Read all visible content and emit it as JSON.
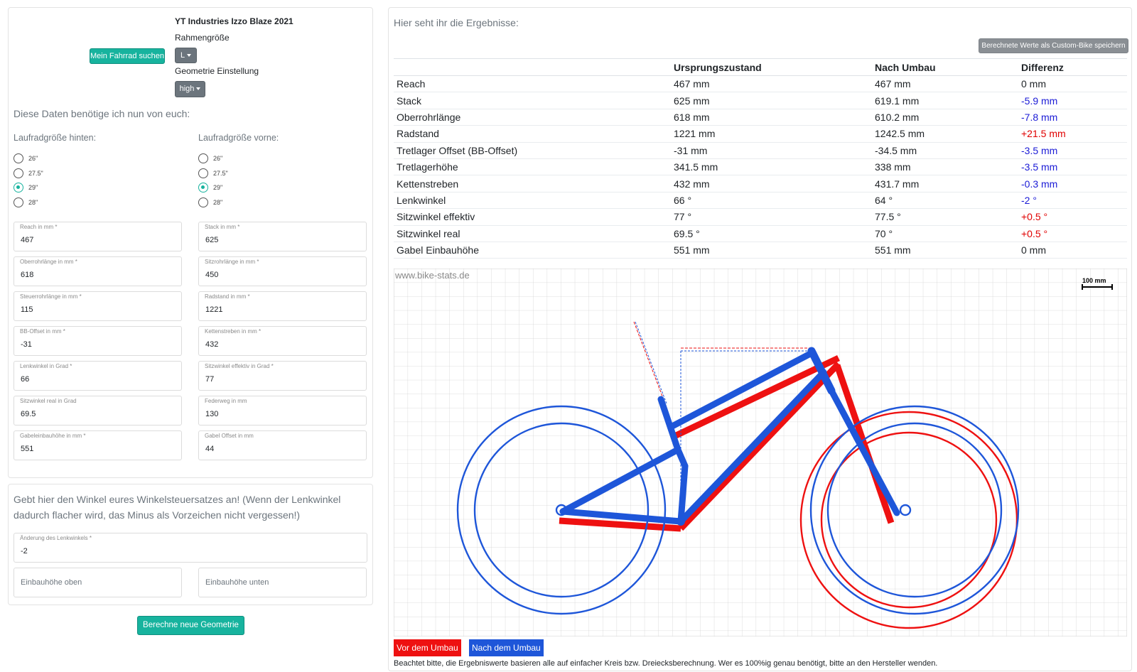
{
  "bike": {
    "find_button": "Mein Fahrrad suchen",
    "name": "YT Industries Izzo Blaze 2021",
    "size_label": "Rahmengröße",
    "size_value": "L",
    "geometry_label": "Geometrie Einstellung",
    "geometry_value": "high"
  },
  "input_section": {
    "intro": "Diese Daten benötige ich nun von euch:",
    "rear_wheel_label": "Laufradgröße hinten:",
    "front_wheel_label": "Laufradgröße vorne:",
    "wheel_options": [
      "26\"",
      "27.5\"",
      "29\"",
      "28\""
    ],
    "rear_selected": "29\"",
    "front_selected": "29\"",
    "fields_left": [
      {
        "label": "Reach in mm *",
        "value": "467"
      },
      {
        "label": "Oberrohrlänge in mm *",
        "value": "618"
      },
      {
        "label": "Steuerrohrlänge in mm *",
        "value": "115"
      },
      {
        "label": "BB-Offset in mm *",
        "value": "-31"
      },
      {
        "label": "Lenkwinkel in Grad *",
        "value": "66"
      },
      {
        "label": "Sitzwinkel real in Grad",
        "value": "69.5"
      },
      {
        "label": "Gabeleinbauhöhe in mm *",
        "value": "551"
      }
    ],
    "fields_right": [
      {
        "label": "Stack in mm *",
        "value": "625"
      },
      {
        "label": "Sitzrohrlänge in mm *",
        "value": "450"
      },
      {
        "label": "Radstand in mm *",
        "value": "1221"
      },
      {
        "label": "Kettenstreben in mm *",
        "value": "432"
      },
      {
        "label": "Sitzwinkel effektiv in Grad *",
        "value": "77"
      },
      {
        "label": "Federweg in mm",
        "value": "130"
      },
      {
        "label": "Gabel Offset in mm",
        "value": "44"
      }
    ]
  },
  "steuersatz": {
    "text": "Gebt hier den Winkel eures Winkelsteuersatzes an! (Wenn der Lenkwinkel dadurch flacher wird, das Minus als Vorzeichen nicht vergessen!)",
    "angle_label": "Änderung des Lenkwinkels *",
    "angle_value": "-2",
    "top_placeholder": "Einbauhöhe oben",
    "bottom_placeholder": "Einbauhöhe unten",
    "calc_button": "Berechne neue Geometrie"
  },
  "results": {
    "title": "Hier seht ihr die Ergebnisse:",
    "save_button": "Berechnete Werte als Custom-Bike speichern",
    "headers": [
      "",
      "Ursprungszustand",
      "Nach Umbau",
      "Differenz"
    ],
    "rows": [
      {
        "name": "Reach",
        "orig": "467 mm",
        "new": "467 mm",
        "diff": "0 mm",
        "sign": "neutral"
      },
      {
        "name": "Stack",
        "orig": "625 mm",
        "new": "619.1 mm",
        "diff": "-5.9 mm",
        "sign": "neg"
      },
      {
        "name": "Oberrohrlänge",
        "orig": "618 mm",
        "new": "610.2 mm",
        "diff": "-7.8 mm",
        "sign": "neg"
      },
      {
        "name": "Radstand",
        "orig": "1221 mm",
        "new": "1242.5 mm",
        "diff": "+21.5 mm",
        "sign": "pos"
      },
      {
        "name": "Tretlager Offset (BB-Offset)",
        "orig": "-31 mm",
        "new": "-34.5 mm",
        "diff": "-3.5 mm",
        "sign": "neg"
      },
      {
        "name": "Tretlagerhöhe",
        "orig": "341.5 mm",
        "new": "338 mm",
        "diff": "-3.5 mm",
        "sign": "neg"
      },
      {
        "name": "Kettenstreben",
        "orig": "432 mm",
        "new": "431.7 mm",
        "diff": "-0.3 mm",
        "sign": "neg"
      },
      {
        "name": "Lenkwinkel",
        "orig": "66 °",
        "new": "64 °",
        "diff": "-2 °",
        "sign": "neg"
      },
      {
        "name": "Sitzwinkel effektiv",
        "orig": "77 °",
        "new": "77.5 °",
        "diff": "+0.5 °",
        "sign": "pos"
      },
      {
        "name": "Sitzwinkel real",
        "orig": "69.5 °",
        "new": "70 °",
        "diff": "+0.5 °",
        "sign": "pos"
      },
      {
        "name": "Gabel Einbauhöhe",
        "orig": "551 mm",
        "new": "551 mm",
        "diff": "0 mm",
        "sign": "neutral"
      }
    ],
    "watermark": "www.bike-stats.de",
    "scale_label": "100 mm",
    "legend_before": "Vor dem Umbau",
    "legend_after": "Nach dem Umbau",
    "note": "Beachtet bitte, die Ergebniswerte basieren alle auf einfacher Kreis bzw. Dreiecksberechnung. Wer es 100%ig genau benötigt, bitte an den Hersteller wenden."
  },
  "colors": {
    "accent": "#17b39e",
    "before": "#ee1111",
    "after": "#1e56d9",
    "negative": "#1a1ad6",
    "positive": "#e00000"
  }
}
